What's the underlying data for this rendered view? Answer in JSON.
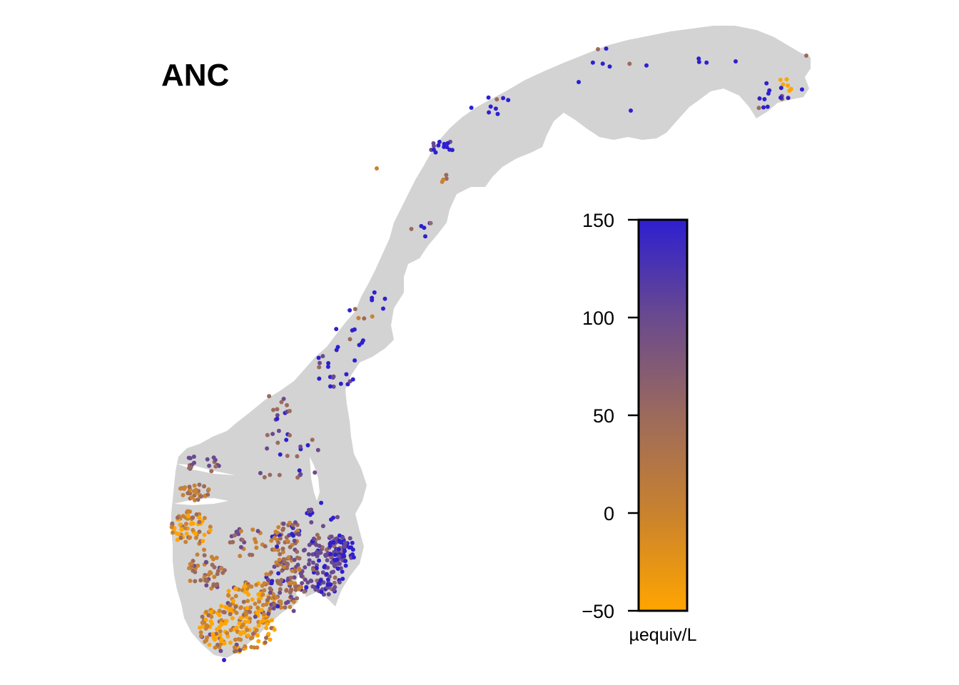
{
  "title": "ANC",
  "colors": {
    "land": "#d3d3d3",
    "low": "#ffa500",
    "mid": "#9c6a5c",
    "high": "#2e1fd0"
  },
  "legend": {
    "unit": "µequiv/L",
    "min": -50,
    "max": 150,
    "ticks": [
      {
        "value": 150,
        "label": "150"
      },
      {
        "value": 100,
        "label": "100"
      },
      {
        "value": 50,
        "label": "50"
      },
      {
        "value": 0,
        "label": "0"
      },
      {
        "value": -50,
        "label": "−50"
      }
    ]
  }
}
